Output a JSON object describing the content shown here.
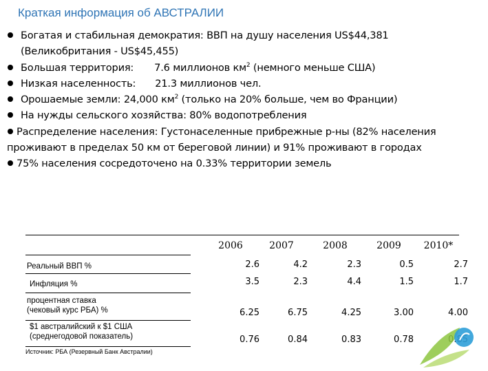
{
  "title": "Краткая информация об АВСТРАЛИИ",
  "bullets": {
    "b1_line1": "Богатая и стабильная демократия: ВВП на душу населения US$44,381",
    "b1_line2": "(Великобритания - US$45,455)",
    "b2_a": "Большая территория:",
    "b2_b": "7.6 миллионов км",
    "b2_sup": "2",
    "b2_c": " (немного меньше США)",
    "b3_a": "Низкая населенность:",
    "b3_b": "21.3 миллионов чел.",
    "b4_a": "Орошаемые земли: 24,000 км",
    "b4_sup": "2",
    "b4_b": " (только на 20% больше, чем во Франции)",
    "b5": "На нужды сельского хозяйства: 80% водопотребления",
    "b6": "Распределение населения: Густонаселенные прибрежные р-ны (82% населения проживают в пределах 50 км от береговой линии) и 91% проживают в городах",
    "b7": "75% населения сосредоточено на 0.33% территории земель"
  },
  "table": {
    "years": [
      "2006",
      "2007",
      "2008",
      "2009",
      "2010*"
    ],
    "rows": [
      {
        "label": "Реальный ВВП %",
        "values": [
          "2.6",
          "4.2",
          "2.3",
          "0.5",
          "2.7"
        ]
      },
      {
        "label": "Инфляция %",
        "values": [
          "3.5",
          "2.3",
          "4.4",
          "1.5",
          "1.7"
        ]
      },
      {
        "label_line1": "процентная ставка",
        "label_line2": "(чековый курс РБА) %",
        "values": [
          "6.25",
          "6.75",
          "4.25",
          "3.00",
          "4.00"
        ]
      },
      {
        "label_line1": "$1 австралийский к $1 США",
        "label_line2": "(среднегодовой показатель)",
        "values": [
          "0.76",
          "0.84",
          "0.83",
          "0.78",
          "0.85"
        ]
      }
    ]
  },
  "source": "Источник: РБА (Резервный Банк Австралии)",
  "colors": {
    "title": "#2e74b5",
    "logo_green": "#8dc63f",
    "logo_blue": "#2e9fd8"
  }
}
